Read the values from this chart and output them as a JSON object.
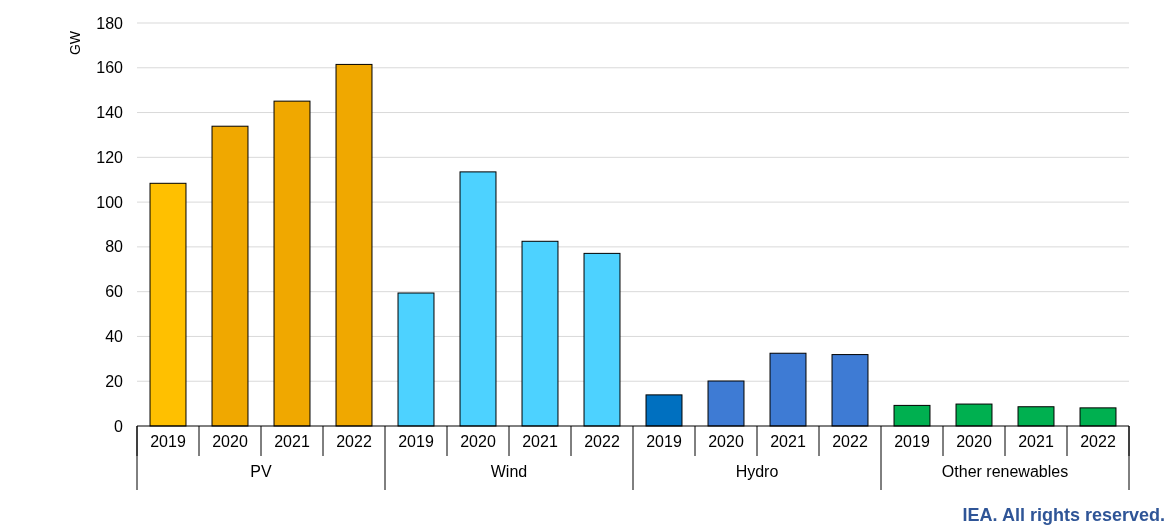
{
  "chart_data": {
    "type": "bar",
    "ylabel": "GW",
    "categories": [
      "2019",
      "2020",
      "2021",
      "2022",
      "2019",
      "2020",
      "2021",
      "2022",
      "2019",
      "2020",
      "2021",
      "2022",
      "2019",
      "2020",
      "2021",
      "2022"
    ],
    "values": [
      108.4,
      133.9,
      145.1,
      161.5,
      59.4,
      113.5,
      82.5,
      77.1,
      13.9,
      20.1,
      32.5,
      31.9,
      9.2,
      9.8,
      8.6,
      8.1
    ],
    "colors": [
      "#ffc000",
      "#f0a800",
      "#f0a800",
      "#f0a800",
      "#4dd2ff",
      "#4dd2ff",
      "#4dd2ff",
      "#4dd2ff",
      "#0070c0",
      "#3e7bd4",
      "#3e7bd4",
      "#3e7bd4",
      "#00b050",
      "#00b050",
      "#00b050",
      "#00b050"
    ],
    "ylim": [
      0,
      180
    ],
    "yticks": [
      0,
      20,
      40,
      60,
      80,
      100,
      120,
      140,
      160,
      180
    ],
    "grid": "y",
    "annotations": [
      "PV",
      "Wind",
      "Hydro",
      "Other renewables",
      "IEA. All rights reserved."
    ]
  }
}
